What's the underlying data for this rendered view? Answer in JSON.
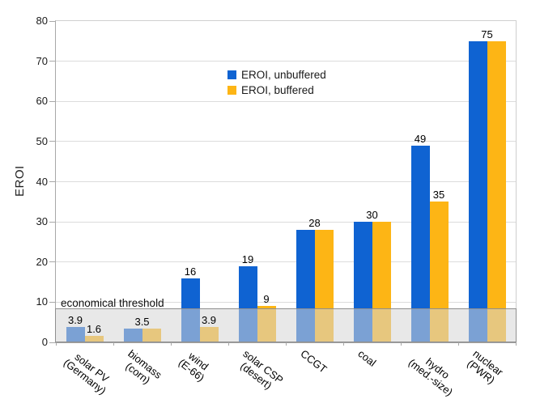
{
  "chart_data": {
    "type": "bar",
    "title": "",
    "xlabel": "",
    "ylabel": "EROI",
    "ylim": [
      0,
      80
    ],
    "ytick_interval": 10,
    "grid": true,
    "legend_position": "upper-center",
    "categories": [
      {
        "lines": [
          "solar PV",
          "(Germany)"
        ]
      },
      {
        "lines": [
          "biomass",
          "(corn)"
        ]
      },
      {
        "lines": [
          "wind",
          "(E-66)"
        ]
      },
      {
        "lines": [
          "solar CSP",
          "(desert)"
        ]
      },
      {
        "lines": [
          "CCGT"
        ]
      },
      {
        "lines": [
          "coal"
        ]
      },
      {
        "lines": [
          "hydro",
          "(med.-size)"
        ]
      },
      {
        "lines": [
          "nuclear",
          "(PWR)"
        ]
      }
    ],
    "series": [
      {
        "name": "EROI, unbuffered",
        "color": "#0f63d2",
        "hatch": "none",
        "values": [
          3.9,
          3.5,
          16,
          19,
          28,
          30,
          49,
          75
        ]
      },
      {
        "name": "EROI, buffered",
        "color": "#fdb515",
        "hatch": "diagonal",
        "values": [
          1.6,
          3.5,
          3.9,
          9,
          28,
          30,
          35,
          75
        ]
      }
    ],
    "threshold_band": {
      "label": "economical threshold",
      "from": 0,
      "to": 8,
      "fill": "rgba(213,213,213,0.55)",
      "border_color": "#8f8f8f"
    }
  },
  "colors": {
    "unbuffered_blue": "#0f63d2",
    "buffered_orange": "#fdb515",
    "gridline": "#dcdcdc",
    "axis": "#a8a8a8"
  }
}
